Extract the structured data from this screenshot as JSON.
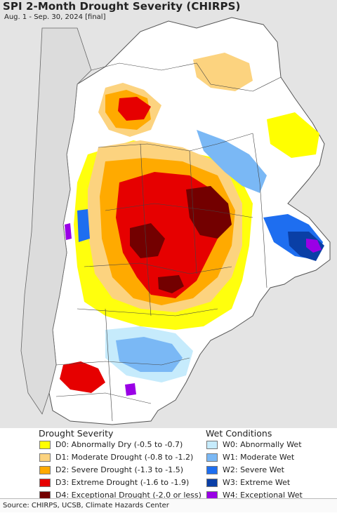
{
  "title": "SPI 2-Month Drought Severity (CHIRPS)",
  "subtitle": "Aug. 1 - Sep. 30, 2024 [final]",
  "legend": {
    "drought_heading": "Drought Severity",
    "wet_heading": "Wet Conditions",
    "drought_items": [
      {
        "label": "D0: Abnormally Dry (-0.5 to -0.7)",
        "color": "#ffff00"
      },
      {
        "label": "D1: Moderate Drought (-0.8 to -1.2)",
        "color": "#fcd37f"
      },
      {
        "label": "D2: Severe Drought (-1.3 to -1.5)",
        "color": "#ffaa00"
      },
      {
        "label": "D3: Extreme Drought (-1.6 to -1.9)",
        "color": "#e60000"
      },
      {
        "label": "D4: Exceptional Drought (-2.0 or less)",
        "color": "#730000"
      }
    ],
    "wet_items": [
      {
        "label": "W0: Abnormally Wet",
        "color": "#c6ebfc"
      },
      {
        "label": "W1: Moderate Wet",
        "color": "#7ab8f5"
      },
      {
        "label": "W2: Severe Wet",
        "color": "#1e6ef0"
      },
      {
        "label": "W3: Extreme Wet",
        "color": "#0a3fa6"
      },
      {
        "label": "W4: Exceptional Wet",
        "color": "#9a00e6"
      }
    ]
  },
  "source": "Source: CHIRPS, UCSB, Climate Hazards Center"
}
